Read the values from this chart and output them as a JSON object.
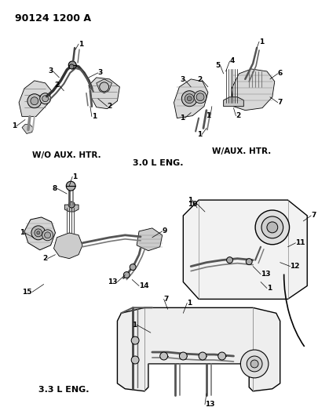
{
  "title": "90124 1200 A",
  "background_color": "#ffffff",
  "text_color": "#000000",
  "label_top_left": "W/O AUX. HTR.",
  "label_top_right": "W/AUX. HTR.",
  "label_mid_center": "3.0 L ENG.",
  "label_bot_left": "3.3 L ENG.",
  "figsize": [
    4.05,
    5.33
  ],
  "dpi": 100
}
